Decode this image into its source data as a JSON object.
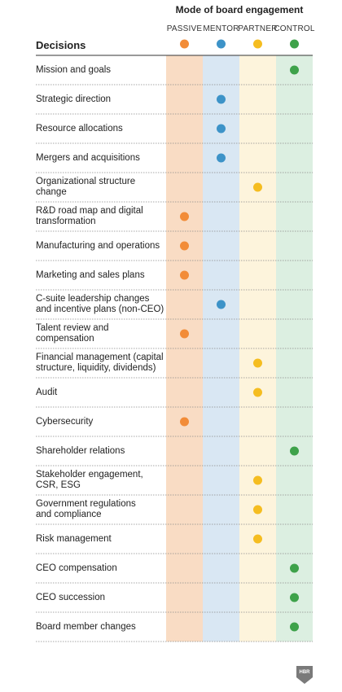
{
  "chart_data": {
    "type": "table",
    "title": "Mode of board engagement",
    "row_header": "Decisions",
    "columns": [
      "PASSIVE",
      "MENTOR",
      "PARTNER",
      "CONTROL"
    ],
    "column_colors": {
      "PASSIVE": {
        "band": "#f9dcc4",
        "dot": "#f28c38"
      },
      "MENTOR": {
        "band": "#d9e7f3",
        "dot": "#3d93c8"
      },
      "PARTNER": {
        "band": "#fdf4dc",
        "dot": "#f5bd20"
      },
      "CONTROL": {
        "band": "#dcefe1",
        "dot": "#3ea24a"
      }
    },
    "rows": [
      {
        "decision": "Mission and goals",
        "mode": "CONTROL"
      },
      {
        "decision": "Strategic direction",
        "mode": "MENTOR"
      },
      {
        "decision": "Resource allocations",
        "mode": "MENTOR"
      },
      {
        "decision": "Mergers and acquisitions",
        "mode": "MENTOR"
      },
      {
        "decision": "Organizational structure change",
        "mode": "PARTNER"
      },
      {
        "decision": "R&D road map and digital\ntransformation",
        "mode": "PASSIVE"
      },
      {
        "decision": "Manufacturing and operations",
        "mode": "PASSIVE"
      },
      {
        "decision": "Marketing and sales plans",
        "mode": "PASSIVE"
      },
      {
        "decision": "C-suite leadership changes\nand incentive plans (non-CEO)",
        "mode": "MENTOR"
      },
      {
        "decision": "Talent review and compensation",
        "mode": "PASSIVE"
      },
      {
        "decision": "Financial management (capital\nstructure, liquidity, dividends)",
        "mode": "PARTNER"
      },
      {
        "decision": "Audit",
        "mode": "PARTNER"
      },
      {
        "decision": "Cybersecurity",
        "mode": "PASSIVE"
      },
      {
        "decision": "Shareholder relations",
        "mode": "CONTROL"
      },
      {
        "decision": "Stakeholder engagement,\nCSR, ESG",
        "mode": "PARTNER"
      },
      {
        "decision": "Government regulations\nand compliance",
        "mode": "PARTNER"
      },
      {
        "decision": "Risk management",
        "mode": "PARTNER"
      },
      {
        "decision": "CEO compensation",
        "mode": "CONTROL"
      },
      {
        "decision": "CEO succession",
        "mode": "CONTROL"
      },
      {
        "decision": "Board member changes",
        "mode": "CONTROL"
      }
    ]
  },
  "logo": {
    "text": "HBR"
  }
}
